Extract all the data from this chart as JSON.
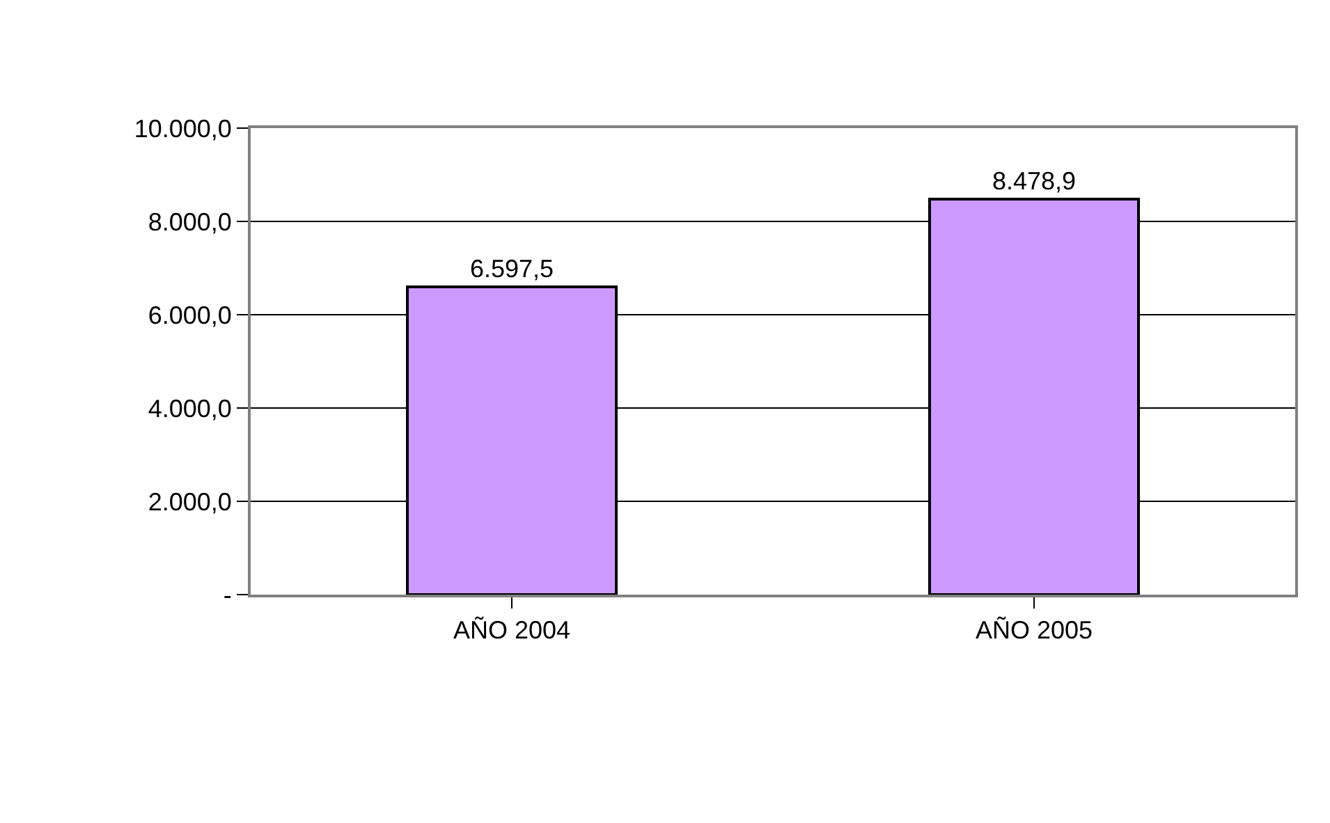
{
  "chart_data": {
    "type": "bar",
    "categories": [
      "AÑO 2004",
      "AÑO 2005"
    ],
    "values": [
      6597.5,
      8478.9
    ],
    "value_labels": [
      "6.597,5",
      "8.478,9"
    ],
    "color": "#cc99ff",
    "ylim": [
      0,
      10000
    ],
    "yticks": [
      {
        "value": 0,
        "label": "-"
      },
      {
        "value": 2000,
        "label": "2.000,0"
      },
      {
        "value": 4000,
        "label": "4.000,0"
      },
      {
        "value": 6000,
        "label": "6.000,0"
      },
      {
        "value": 8000,
        "label": "8.000,0"
      },
      {
        "value": 10000,
        "label": "10.000,0"
      }
    ],
    "grid": "y",
    "legend": false
  }
}
